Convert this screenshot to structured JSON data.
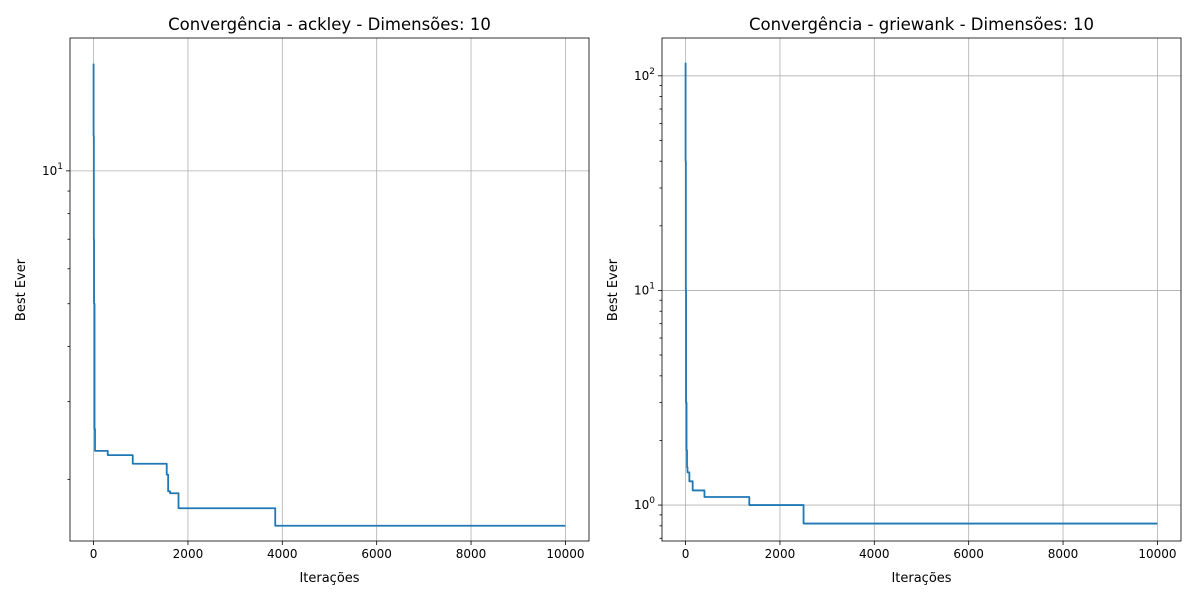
{
  "chart_data": [
    {
      "type": "line",
      "title": "Convergência - ackley - Dimensões: 10",
      "xlabel": "Iterações",
      "ylabel": "Best Ever",
      "xlim": [
        -500,
        10500
      ],
      "ylim": [
        1.45,
        20
      ],
      "yscale": "log",
      "grid": true,
      "xticks": [
        0,
        2000,
        4000,
        6000,
        8000,
        10000
      ],
      "xtick_labels": [
        "0",
        "2000",
        "4000",
        "6000",
        "8000",
        "10000"
      ],
      "yticks": [
        10
      ],
      "ytick_labels": [
        "10",
        "1"
      ],
      "yminor_ticks": [
        2,
        3,
        4,
        5,
        6,
        7,
        8,
        9
      ],
      "series": [
        {
          "x": [
            0,
            0,
            5,
            5,
            10,
            10,
            20,
            20,
            30,
            30,
            300,
            300,
            830,
            830,
            1550,
            1550,
            1580,
            1580,
            1620,
            1620,
            1800,
            1800,
            3850,
            3850,
            10000
          ],
          "y": [
            17.5,
            12,
            12,
            7,
            7,
            5,
            5,
            2.6,
            2.6,
            2.32,
            2.32,
            2.27,
            2.27,
            2.17,
            2.17,
            2.05,
            2.05,
            1.88,
            1.88,
            1.86,
            1.86,
            1.72,
            1.72,
            1.57,
            1.57
          ],
          "color": "#1f77b4"
        }
      ]
    },
    {
      "type": "line",
      "title": "Convergência - griewank - Dimensões: 10",
      "xlabel": "Iterações",
      "ylabel": "Best Ever",
      "xlim": [
        -500,
        10500
      ],
      "ylim": [
        0.68,
        150
      ],
      "yscale": "log",
      "grid": true,
      "xticks": [
        0,
        2000,
        4000,
        6000,
        8000,
        10000
      ],
      "xtick_labels": [
        "0",
        "2000",
        "4000",
        "6000",
        "8000",
        "10000"
      ],
      "yticks": [
        1,
        10,
        100
      ],
      "ytick_labels": [
        "10",
        "0",
        "10",
        "1",
        "10",
        "2"
      ],
      "yminor_ticks": [
        0.7,
        0.8,
        0.9,
        2,
        3,
        4,
        5,
        6,
        7,
        8,
        9,
        20,
        30,
        40,
        50,
        60,
        70,
        80,
        90
      ],
      "series": [
        {
          "x": [
            0,
            0,
            5,
            5,
            10,
            10,
            20,
            20,
            30,
            30,
            40,
            40,
            80,
            80,
            150,
            150,
            400,
            400,
            1350,
            1350,
            2500,
            2500,
            10000
          ],
          "y": [
            115,
            40,
            40,
            10,
            10,
            3,
            3,
            1.8,
            1.8,
            1.5,
            1.5,
            1.42,
            1.42,
            1.29,
            1.29,
            1.17,
            1.17,
            1.09,
            1.09,
            1.0,
            1.0,
            0.82,
            0.82
          ],
          "color": "#1f77b4"
        }
      ]
    }
  ]
}
